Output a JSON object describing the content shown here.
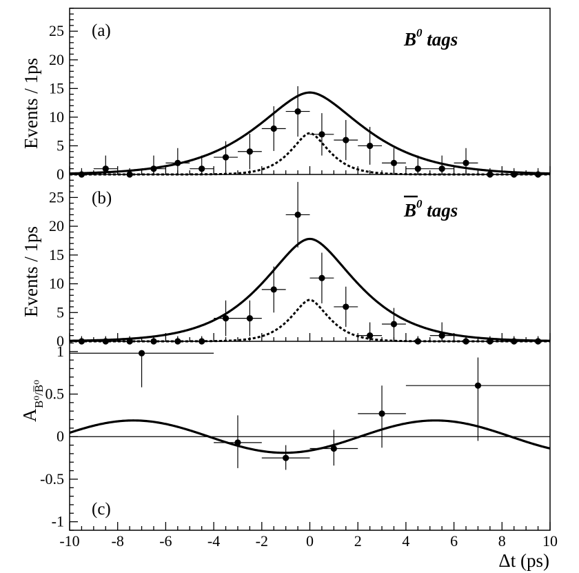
{
  "chart_data": [
    {
      "id": "a",
      "type": "scatter",
      "panel_label": "(a)",
      "tag_label": "B",
      "tag_sup": "0",
      "tag_suffix": " tags",
      "ylabel": "Events / 1ps",
      "ylim": [
        0,
        29
      ],
      "yticks": [
        0,
        5,
        10,
        15,
        20,
        25
      ],
      "ytick_labels": [
        "0",
        "5",
        "10",
        "15",
        "20",
        "25"
      ],
      "points": [
        {
          "x": -9.5,
          "y": 0,
          "err": 1.1
        },
        {
          "x": -8.5,
          "y": 1,
          "err": 2.3
        },
        {
          "x": -7.5,
          "y": 0,
          "err": 1.1
        },
        {
          "x": -6.5,
          "y": 1,
          "err": 2.3
        },
        {
          "x": -5.5,
          "y": 2,
          "err": 2.6
        },
        {
          "x": -4.5,
          "y": 1,
          "err": 2.3
        },
        {
          "x": -3.5,
          "y": 3,
          "err": 2.8
        },
        {
          "x": -2.5,
          "y": 4,
          "err": 3.1
        },
        {
          "x": -1.5,
          "y": 8,
          "err": 3.9
        },
        {
          "x": -0.5,
          "y": 11,
          "err": 4.4
        },
        {
          "x": 0.5,
          "y": 7,
          "err": 3.7
        },
        {
          "x": 1.5,
          "y": 6,
          "err": 3.5
        },
        {
          "x": 2.5,
          "y": 5,
          "err": 3.3
        },
        {
          "x": 3.5,
          "y": 2,
          "err": 2.6
        },
        {
          "x": 4.5,
          "y": 1,
          "err": 2.3
        },
        {
          "x": 5.5,
          "y": 1,
          "err": 2.3
        },
        {
          "x": 6.5,
          "y": 2,
          "err": 2.6
        },
        {
          "x": 7.5,
          "y": 0,
          "err": 1.1
        },
        {
          "x": 8.5,
          "y": 0,
          "err": 1.1
        },
        {
          "x": 9.5,
          "y": 0,
          "err": 1.1
        }
      ],
      "curves": [
        {
          "name": "total fit",
          "style": "solid",
          "peak": 14.3,
          "tau": 1.55,
          "core": 0.5
        },
        {
          "name": "background",
          "style": "dotted",
          "peak": 7.2,
          "tau": 0.55,
          "core": 0.3
        }
      ]
    },
    {
      "id": "b",
      "type": "scatter",
      "panel_label": "(b)",
      "tag_label": "B",
      "tag_sup": "0",
      "tag_suffix": " tags",
      "tag_overline": true,
      "ylabel": "Events / 1ps",
      "ylim": [
        0,
        29
      ],
      "yticks": [
        0,
        5,
        10,
        15,
        20,
        25
      ],
      "ytick_labels": [
        "0",
        "5",
        "10",
        "15",
        "20",
        "25"
      ],
      "points": [
        {
          "x": -9.5,
          "y": 0,
          "err": 0.9
        },
        {
          "x": -8.5,
          "y": 0,
          "err": 0.9
        },
        {
          "x": -7.5,
          "y": 0,
          "err": 0.9
        },
        {
          "x": -6.5,
          "y": 0,
          "err": 0.9
        },
        {
          "x": -5.5,
          "y": 0,
          "err": 0.9
        },
        {
          "x": -4.5,
          "y": 0,
          "err": 0.9
        },
        {
          "x": -3.5,
          "y": 4,
          "err": 3.1
        },
        {
          "x": -2.5,
          "y": 4,
          "err": 3.1
        },
        {
          "x": -1.5,
          "y": 9,
          "err": 4.0
        },
        {
          "x": -0.5,
          "y": 22,
          "err": 5.7
        },
        {
          "x": 0.5,
          "y": 11,
          "err": 4.4
        },
        {
          "x": 1.5,
          "y": 6,
          "err": 3.5
        },
        {
          "x": 2.5,
          "y": 1,
          "err": 2.3
        },
        {
          "x": 3.5,
          "y": 3,
          "err": 2.8
        },
        {
          "x": 4.5,
          "y": 0,
          "err": 0.9
        },
        {
          "x": 5.5,
          "y": 1,
          "err": 2.3
        },
        {
          "x": 6.5,
          "y": 0,
          "err": 0.9
        },
        {
          "x": 7.5,
          "y": 0,
          "err": 0.9
        },
        {
          "x": 8.5,
          "y": 0,
          "err": 0.9
        },
        {
          "x": 9.5,
          "y": 0,
          "err": 0.9
        }
      ],
      "curves": [
        {
          "name": "total fit",
          "style": "solid",
          "peak": 17.8,
          "tau": 1.35,
          "core": 0.5
        },
        {
          "name": "background",
          "style": "dotted",
          "peak": 7.2,
          "tau": 0.55,
          "core": 0.3
        }
      ]
    },
    {
      "id": "c",
      "type": "scatter",
      "panel_label": "(c)",
      "ylabel": "A",
      "ylabel_sub": "B⁰/B̅⁰",
      "ylim": [
        -1.1,
        1.12
      ],
      "yticks": [
        -1,
        -0.5,
        0,
        0.5,
        1
      ],
      "ytick_labels": [
        "-1",
        "-0.5",
        "0",
        "0.5",
        "1"
      ],
      "points": [
        {
          "x": -7,
          "xerr": 3,
          "y": 0.98,
          "err_lo": 0.4,
          "err_hi": 0.02
        },
        {
          "x": -3,
          "xerr": 1,
          "y": -0.07,
          "err_lo": 0.3,
          "err_hi": 0.32
        },
        {
          "x": -1,
          "xerr": 1,
          "y": -0.25,
          "err_lo": 0.14,
          "err_hi": 0.15
        },
        {
          "x": 1,
          "xerr": 1,
          "y": -0.14,
          "err_lo": 0.2,
          "err_hi": 0.22
        },
        {
          "x": 3,
          "xerr": 1,
          "y": 0.27,
          "err_lo": 0.4,
          "err_hi": 0.33
        },
        {
          "x": 7,
          "xerr": 3,
          "y": 0.6,
          "err_lo": 0.65,
          "err_hi": 0.33
        }
      ],
      "curve": {
        "name": "asymmetry fit",
        "style": "solid"
      }
    }
  ],
  "x_axis": {
    "xlabel": "Δt (ps)",
    "xlim": [
      -10,
      10
    ],
    "xticks": [
      -10,
      -8,
      -6,
      -4,
      -2,
      0,
      2,
      4,
      6,
      8,
      10
    ],
    "xtick_labels": [
      "-10",
      "-8",
      "-6",
      "-4",
      "-2",
      "0",
      "2",
      "4",
      "6",
      "8",
      "10"
    ]
  }
}
